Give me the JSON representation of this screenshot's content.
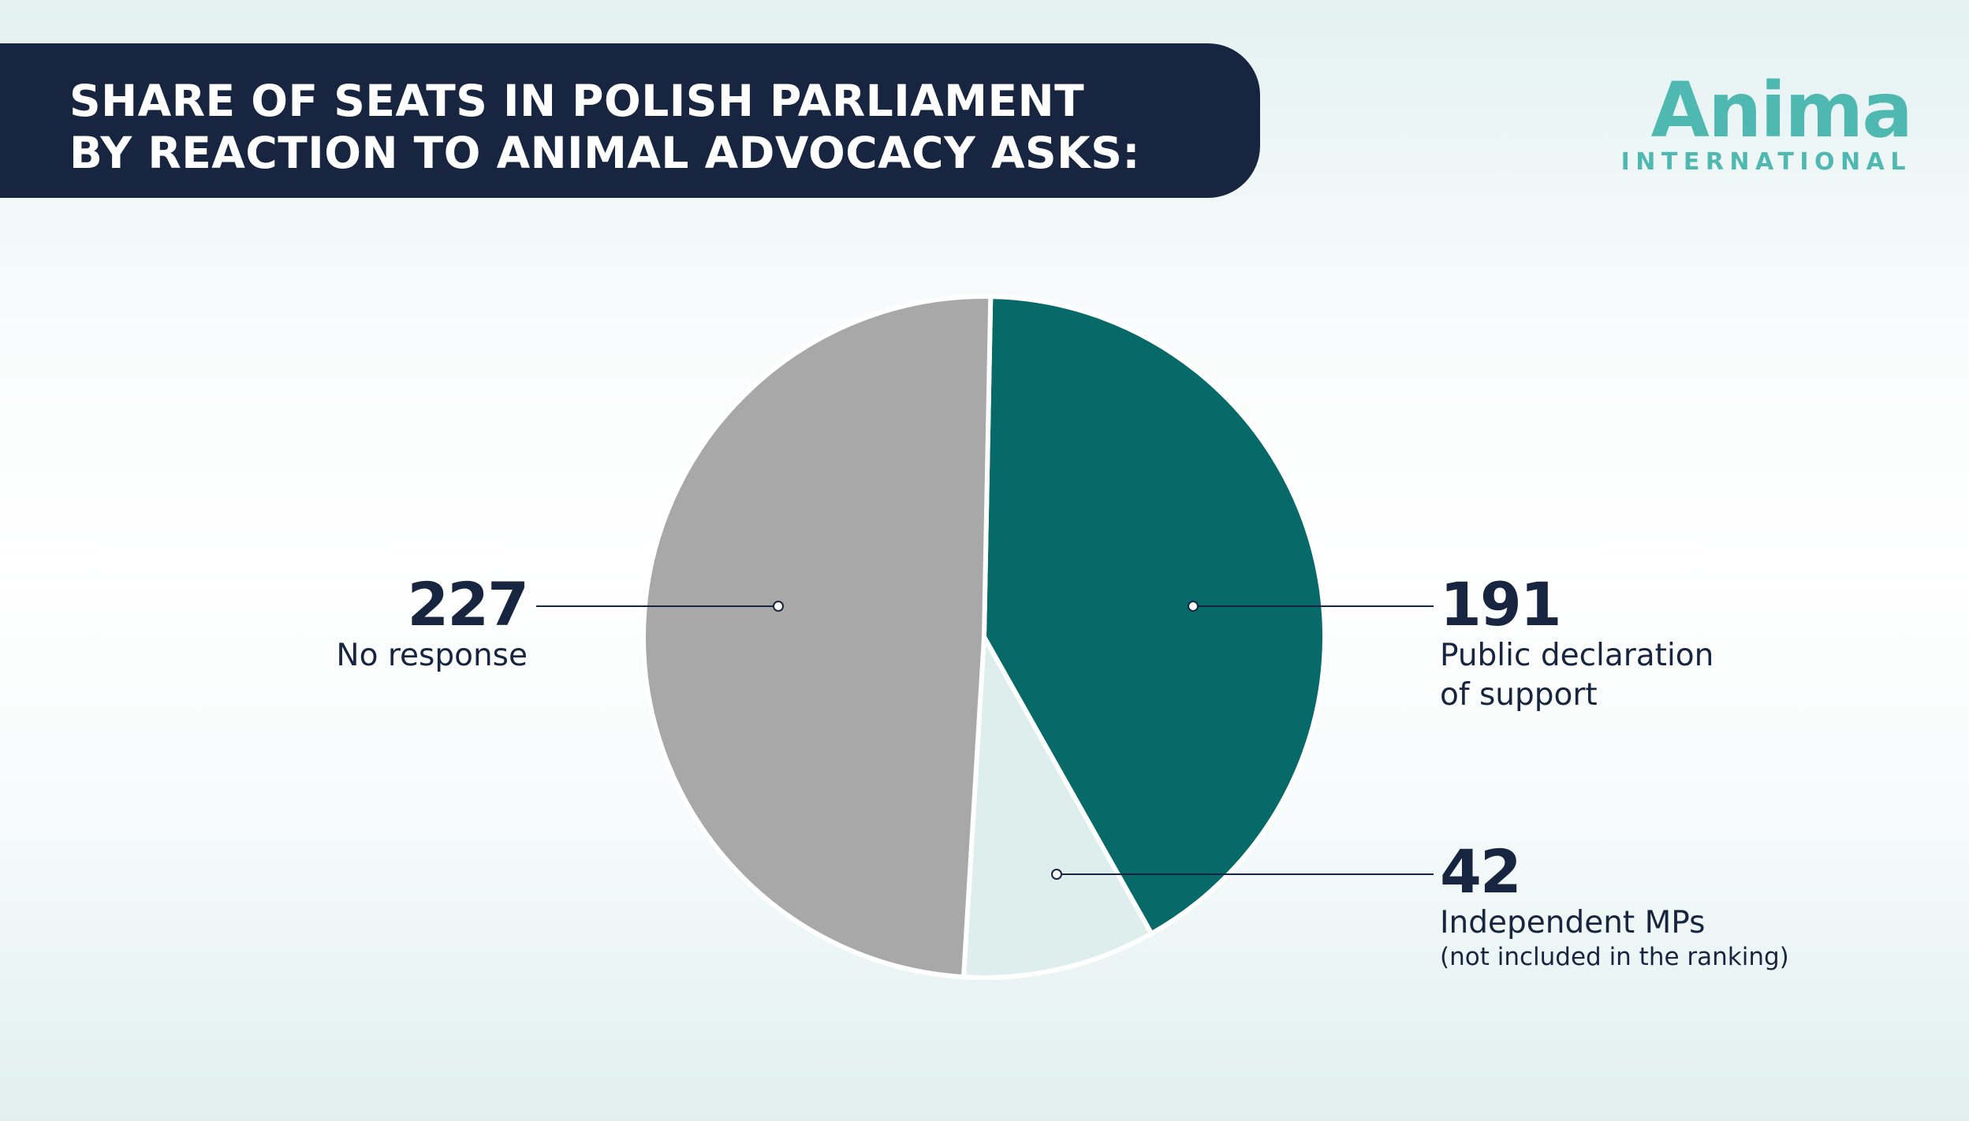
{
  "title": {
    "line1": "SHARE OF SEATS IN POLISH PARLIAMENT",
    "line2": "BY REACTION TO ANIMAL ADVOCACY ASKS:"
  },
  "logo": {
    "word": "Anima",
    "sub": "INTERNATIONAL"
  },
  "colors": {
    "banner": "#172540",
    "brand": "#4fb8b1",
    "support": "#076a68",
    "independent": "#ddeeed",
    "no_response": "#a8a8a8"
  },
  "chart_data": {
    "type": "pie",
    "title": "SHARE OF SEATS IN POLISH PARLIAMENT BY REACTION TO ANIMAL ADVOCACY ASKS:",
    "slices": [
      {
        "label": "Public declaration of support",
        "value": 191,
        "color": "#076a68"
      },
      {
        "label": "Independent MPs",
        "note": "(not included in the ranking)",
        "value": 42,
        "color": "#ddeeed"
      },
      {
        "label": "No response",
        "value": 227,
        "color": "#a8a8a8"
      }
    ]
  },
  "labels": {
    "support": {
      "value": "191",
      "line1": "Public declaration",
      "line2": "of support"
    },
    "independent": {
      "value": "42",
      "line1": "Independent MPs",
      "note": "(not included in the ranking)"
    },
    "no_response": {
      "value": "227",
      "line1": "No response"
    }
  }
}
